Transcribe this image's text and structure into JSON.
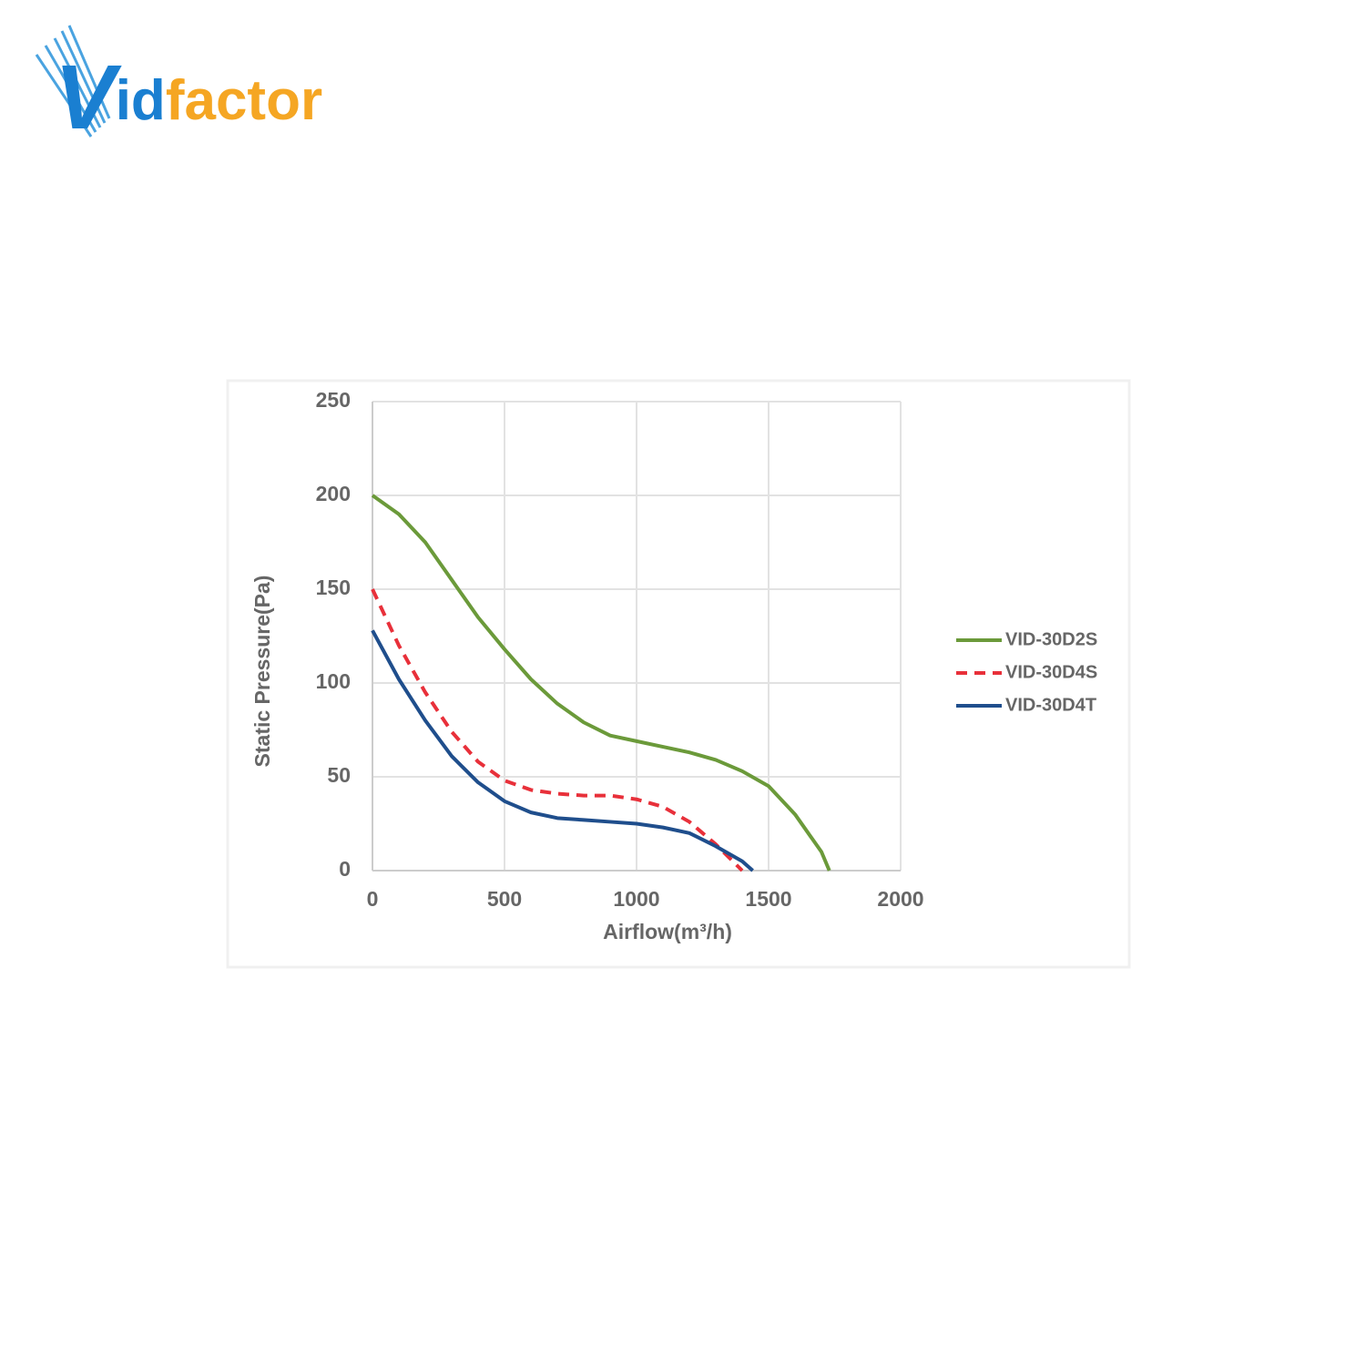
{
  "logo": [
    "V",
    "id",
    "factor"
  ],
  "chart_data": {
    "type": "line",
    "xlabel": "Airflow(m³/h)",
    "ylabel": "Static Pressure(Pa)",
    "xlim": [
      0,
      2000
    ],
    "xticks": [
      0,
      500,
      1000,
      1500,
      2000
    ],
    "ylim": [
      0,
      250
    ],
    "yticks": [
      0,
      50,
      100,
      150,
      200,
      250
    ],
    "grid": true,
    "legend": "right",
    "series": [
      {
        "name": "VID-30D2S",
        "color": "#6b9a3a",
        "dash": false,
        "x": [
          0,
          100,
          200,
          300,
          400,
          500,
          600,
          700,
          800,
          900,
          1000,
          1100,
          1200,
          1300,
          1400,
          1500,
          1600,
          1700,
          1730
        ],
        "values": [
          200,
          190,
          175,
          155,
          135,
          118,
          102,
          89,
          79,
          72,
          69,
          66,
          63,
          59,
          53,
          45,
          30,
          10,
          0
        ]
      },
      {
        "name": "VID-30D4S",
        "color": "#e8303a",
        "dash": true,
        "x": [
          0,
          100,
          200,
          300,
          400,
          500,
          600,
          700,
          800,
          900,
          1000,
          1100,
          1200,
          1300,
          1400
        ],
        "values": [
          150,
          120,
          95,
          74,
          58,
          48,
          43,
          41,
          40,
          40,
          38,
          34,
          26,
          14,
          0
        ]
      },
      {
        "name": "VID-30D4T",
        "color": "#1f4e8c",
        "dash": false,
        "x": [
          0,
          100,
          200,
          300,
          400,
          500,
          600,
          700,
          800,
          900,
          1000,
          1100,
          1200,
          1300,
          1400,
          1440
        ],
        "values": [
          128,
          102,
          80,
          61,
          47,
          37,
          31,
          28,
          27,
          26,
          25,
          23,
          20,
          13,
          5,
          0
        ]
      }
    ]
  }
}
